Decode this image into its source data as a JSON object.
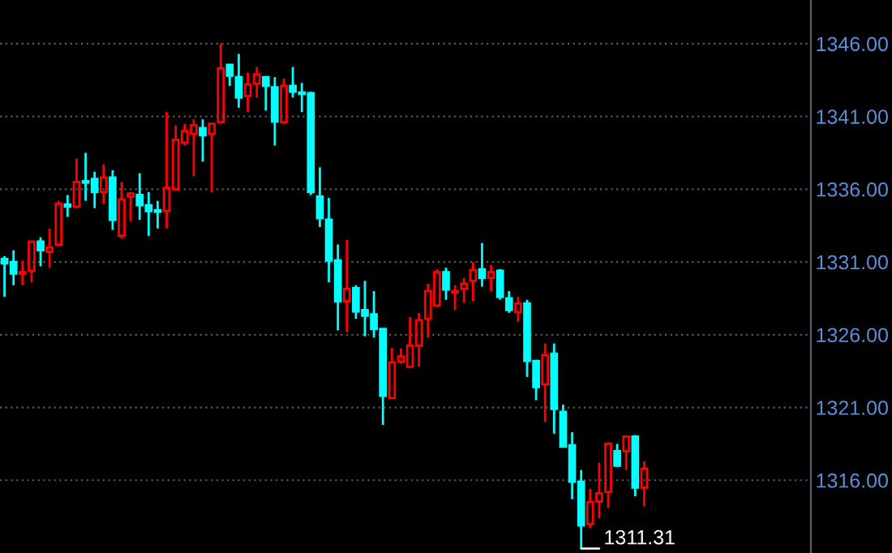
{
  "chart_data": {
    "type": "candlestick",
    "categories": [
      null,
      null,
      null,
      null,
      null,
      null,
      null,
      null,
      null,
      null,
      null,
      null,
      null,
      null,
      null,
      null,
      null,
      null,
      null,
      null,
      null,
      null,
      null,
      null,
      null,
      null,
      null,
      null,
      null,
      null,
      null,
      null,
      null,
      null,
      null,
      null,
      null,
      null,
      null,
      null,
      null,
      null,
      null,
      null,
      null,
      null,
      null,
      null,
      null,
      null,
      null,
      null,
      null,
      null,
      null,
      null,
      null,
      null,
      null,
      null,
      null,
      null,
      null,
      null,
      null,
      null,
      null,
      null,
      null,
      null,
      null,
      null,
      null,
      null,
      null,
      null,
      null,
      null,
      null,
      null,
      null,
      null,
      null,
      null,
      null,
      null,
      null,
      null,
      null,
      null
    ],
    "ohlc": [
      [
        1331.2,
        1331.4,
        1328.6,
        1330.9
      ],
      [
        1331.0,
        1331.8,
        1329.4,
        1330.2
      ],
      [
        1330.2,
        1331.1,
        1329.4,
        1330.3
      ],
      [
        1330.4,
        1332.4,
        1329.6,
        1332.4
      ],
      [
        1332.4,
        1332.7,
        1330.7,
        1331.8
      ],
      [
        1331.7,
        1333.3,
        1330.6,
        1332.0
      ],
      [
        1332.2,
        1335.2,
        1332.2,
        1335.0
      ],
      [
        1334.95,
        1335.6,
        1334.1,
        1334.8
      ],
      [
        1334.8,
        1338.1,
        1334.7,
        1336.5
      ],
      [
        1336.55,
        1338.5,
        1335.2,
        1336.45
      ],
      [
        1336.7,
        1337.2,
        1334.7,
        1335.8
      ],
      [
        1335.8,
        1337.7,
        1335.0,
        1336.8
      ],
      [
        1336.8,
        1337.3,
        1333.2,
        1333.9
      ],
      [
        1332.8,
        1336.5,
        1332.6,
        1335.3
      ],
      [
        1335.5,
        1335.8,
        1333.8,
        1335.7
      ],
      [
        1335.6,
        1337.1,
        1333.9,
        1334.9
      ],
      [
        1334.9,
        1335.8,
        1332.8,
        1334.5
      ],
      [
        1334.55,
        1335.2,
        1333.3,
        1334.45
      ],
      [
        1334.5,
        1341.3,
        1333.3,
        1336.1
      ],
      [
        1336.0,
        1340.4,
        1336.0,
        1339.4
      ],
      [
        1339.2,
        1340.5,
        1339.0,
        1340.0
      ],
      [
        1339.8,
        1340.8,
        1336.9,
        1340.4
      ],
      [
        1340.2,
        1340.8,
        1337.9,
        1339.7
      ],
      [
        1339.8,
        1340.5,
        1335.8,
        1340.5
      ],
      [
        1340.6,
        1346.0,
        1340.6,
        1344.3
      ],
      [
        1344.55,
        1344.6,
        1343.1,
        1343.8
      ],
      [
        1343.7,
        1345.3,
        1341.6,
        1342.3
      ],
      [
        1342.4,
        1344.0,
        1341.3,
        1343.2
      ],
      [
        1343.25,
        1344.4,
        1342.3,
        1343.9
      ],
      [
        1343.7,
        1343.7,
        1341.4,
        1343.1
      ],
      [
        1343.0,
        1343.7,
        1339.0,
        1340.65
      ],
      [
        1340.6,
        1343.6,
        1340.5,
        1343.1
      ],
      [
        1343.1,
        1344.4,
        1342.3,
        1342.7
      ],
      [
        1342.65,
        1343.3,
        1341.3,
        1342.55
      ],
      [
        1342.6,
        1342.7,
        1335.6,
        1335.8
      ],
      [
        1335.5,
        1337.5,
        1333.4,
        1334.0
      ],
      [
        1333.9,
        1335.4,
        1329.6,
        1331.1
      ],
      [
        1331.1,
        1332.2,
        1326.3,
        1328.3
      ],
      [
        1328.3,
        1332.5,
        1326.2,
        1329.15
      ],
      [
        1329.2,
        1329.4,
        1327.1,
        1327.6
      ],
      [
        1327.7,
        1329.7,
        1325.9,
        1327.3
      ],
      [
        1327.4,
        1329.0,
        1325.8,
        1326.4
      ],
      [
        1326.4,
        1326.4,
        1319.8,
        1321.8
      ],
      [
        1321.65,
        1325.1,
        1321.65,
        1324.1
      ],
      [
        1324.15,
        1325.06,
        1324.0,
        1324.5
      ],
      [
        1323.8,
        1327.2,
        1323.8,
        1325.25
      ],
      [
        1325.25,
        1327.5,
        1323.8,
        1327.0
      ],
      [
        1327.1,
        1329.5,
        1325.8,
        1329.0
      ],
      [
        1328.0,
        1330.5,
        1327.9,
        1330.3
      ],
      [
        1330.3,
        1330.6,
        1328.4,
        1329.1
      ],
      [
        1328.9,
        1329.4,
        1327.7,
        1329.0
      ],
      [
        1329.15,
        1329.9,
        1328.2,
        1329.5
      ],
      [
        1329.7,
        1331.0,
        1328.3,
        1330.45
      ],
      [
        1330.5,
        1332.3,
        1329.3,
        1329.9
      ],
      [
        1329.9,
        1330.8,
        1329.0,
        1330.3
      ],
      [
        1330.4,
        1330.5,
        1328.4,
        1328.6
      ],
      [
        1328.5,
        1329.0,
        1327.5,
        1327.7
      ],
      [
        1327.55,
        1328.6,
        1326.9,
        1328.15
      ],
      [
        1328.15,
        1328.4,
        1323.1,
        1324.2
      ],
      [
        1324.2,
        1324.2,
        1321.5,
        1322.4
      ],
      [
        1322.6,
        1325.4,
        1320.0,
        1324.6
      ],
      [
        1324.7,
        1325.4,
        1319.2,
        1320.9
      ],
      [
        1320.7,
        1321.2,
        1318.3,
        1318.3
      ],
      [
        1318.4,
        1319.3,
        1314.7,
        1315.9
      ],
      [
        1315.9,
        1316.7,
        1311.31,
        1312.9
      ],
      [
        1313.0,
        1315.4,
        1312.7,
        1314.5
      ],
      [
        1314.55,
        1317.2,
        1313.4,
        1315.1
      ],
      [
        1315.2,
        1318.6,
        1314.1,
        1318.5
      ],
      [
        1318.0,
        1318.5,
        1316.9,
        1317.0
      ],
      [
        1318.0,
        1319.0,
        1316.7,
        1319.0
      ],
      [
        1319.0,
        1319.1,
        1314.9,
        1315.5
      ],
      [
        1315.5,
        1317.3,
        1314.2,
        1316.8
      ],
      null,
      null,
      null,
      null,
      null,
      null,
      null,
      null,
      null,
      null,
      null,
      null,
      null,
      null,
      null,
      null,
      null,
      null
    ],
    "colors": [
      "#00ffff",
      "#00ffff",
      "#ff0000",
      "#ff0000",
      "#00ffff",
      "#ff0000",
      "#ff0000",
      "#00ffff",
      "#ff0000",
      "#00ffff",
      "#00ffff",
      "#ff0000",
      "#00ffff",
      "#ff0000",
      "#ff0000",
      "#00ffff",
      "#00ffff",
      "#00ffff",
      "#ff0000",
      "#ff0000",
      "#ff0000",
      "#ff0000",
      "#00ffff",
      "#ff0000",
      "#ff0000",
      "#00ffff",
      "#00ffff",
      "#ff0000",
      "#ff0000",
      "#00ffff",
      "#00ffff",
      "#ff0000",
      "#00ffff",
      "#00ffff",
      "#00ffff",
      "#00ffff",
      "#00ffff",
      "#00ffff",
      "#ff0000",
      "#00ffff",
      "#00ffff",
      "#00ffff",
      "#00ffff",
      "#ff0000",
      "#ff0000",
      "#ff0000",
      "#ff0000",
      "#ff0000",
      "#ff0000",
      "#00ffff",
      "#ff0000",
      "#ff0000",
      "#ff0000",
      "#00ffff",
      "#ff0000",
      "#00ffff",
      "#00ffff",
      "#ff0000",
      "#00ffff",
      "#00ffff",
      "#ff0000",
      "#00ffff",
      "#00ffff",
      "#00ffff",
      "#00ffff",
      "#ff0000",
      "#ff0000",
      "#ff0000",
      "#00ffff",
      "#ff0000",
      "#00ffff",
      "#ff0000",
      null,
      null,
      null,
      null,
      null,
      null,
      null,
      null,
      null,
      null,
      null,
      null,
      null,
      null,
      null,
      null,
      null,
      null
    ],
    "ylim": [
      1311.0,
      1349.0
    ],
    "yticks": [
      {
        "value": 1346,
        "label": "1346.00"
      },
      {
        "value": 1341,
        "label": "1341.00"
      },
      {
        "value": 1336,
        "label": "1336.00"
      },
      {
        "value": 1331,
        "label": "1331.00"
      },
      {
        "value": 1326,
        "label": "1326.00"
      },
      {
        "value": 1321,
        "label": "1321.00"
      },
      {
        "value": 1316,
        "label": "1316.00"
      }
    ],
    "grid": "y",
    "annotations": [
      "1311.31"
    ]
  }
}
